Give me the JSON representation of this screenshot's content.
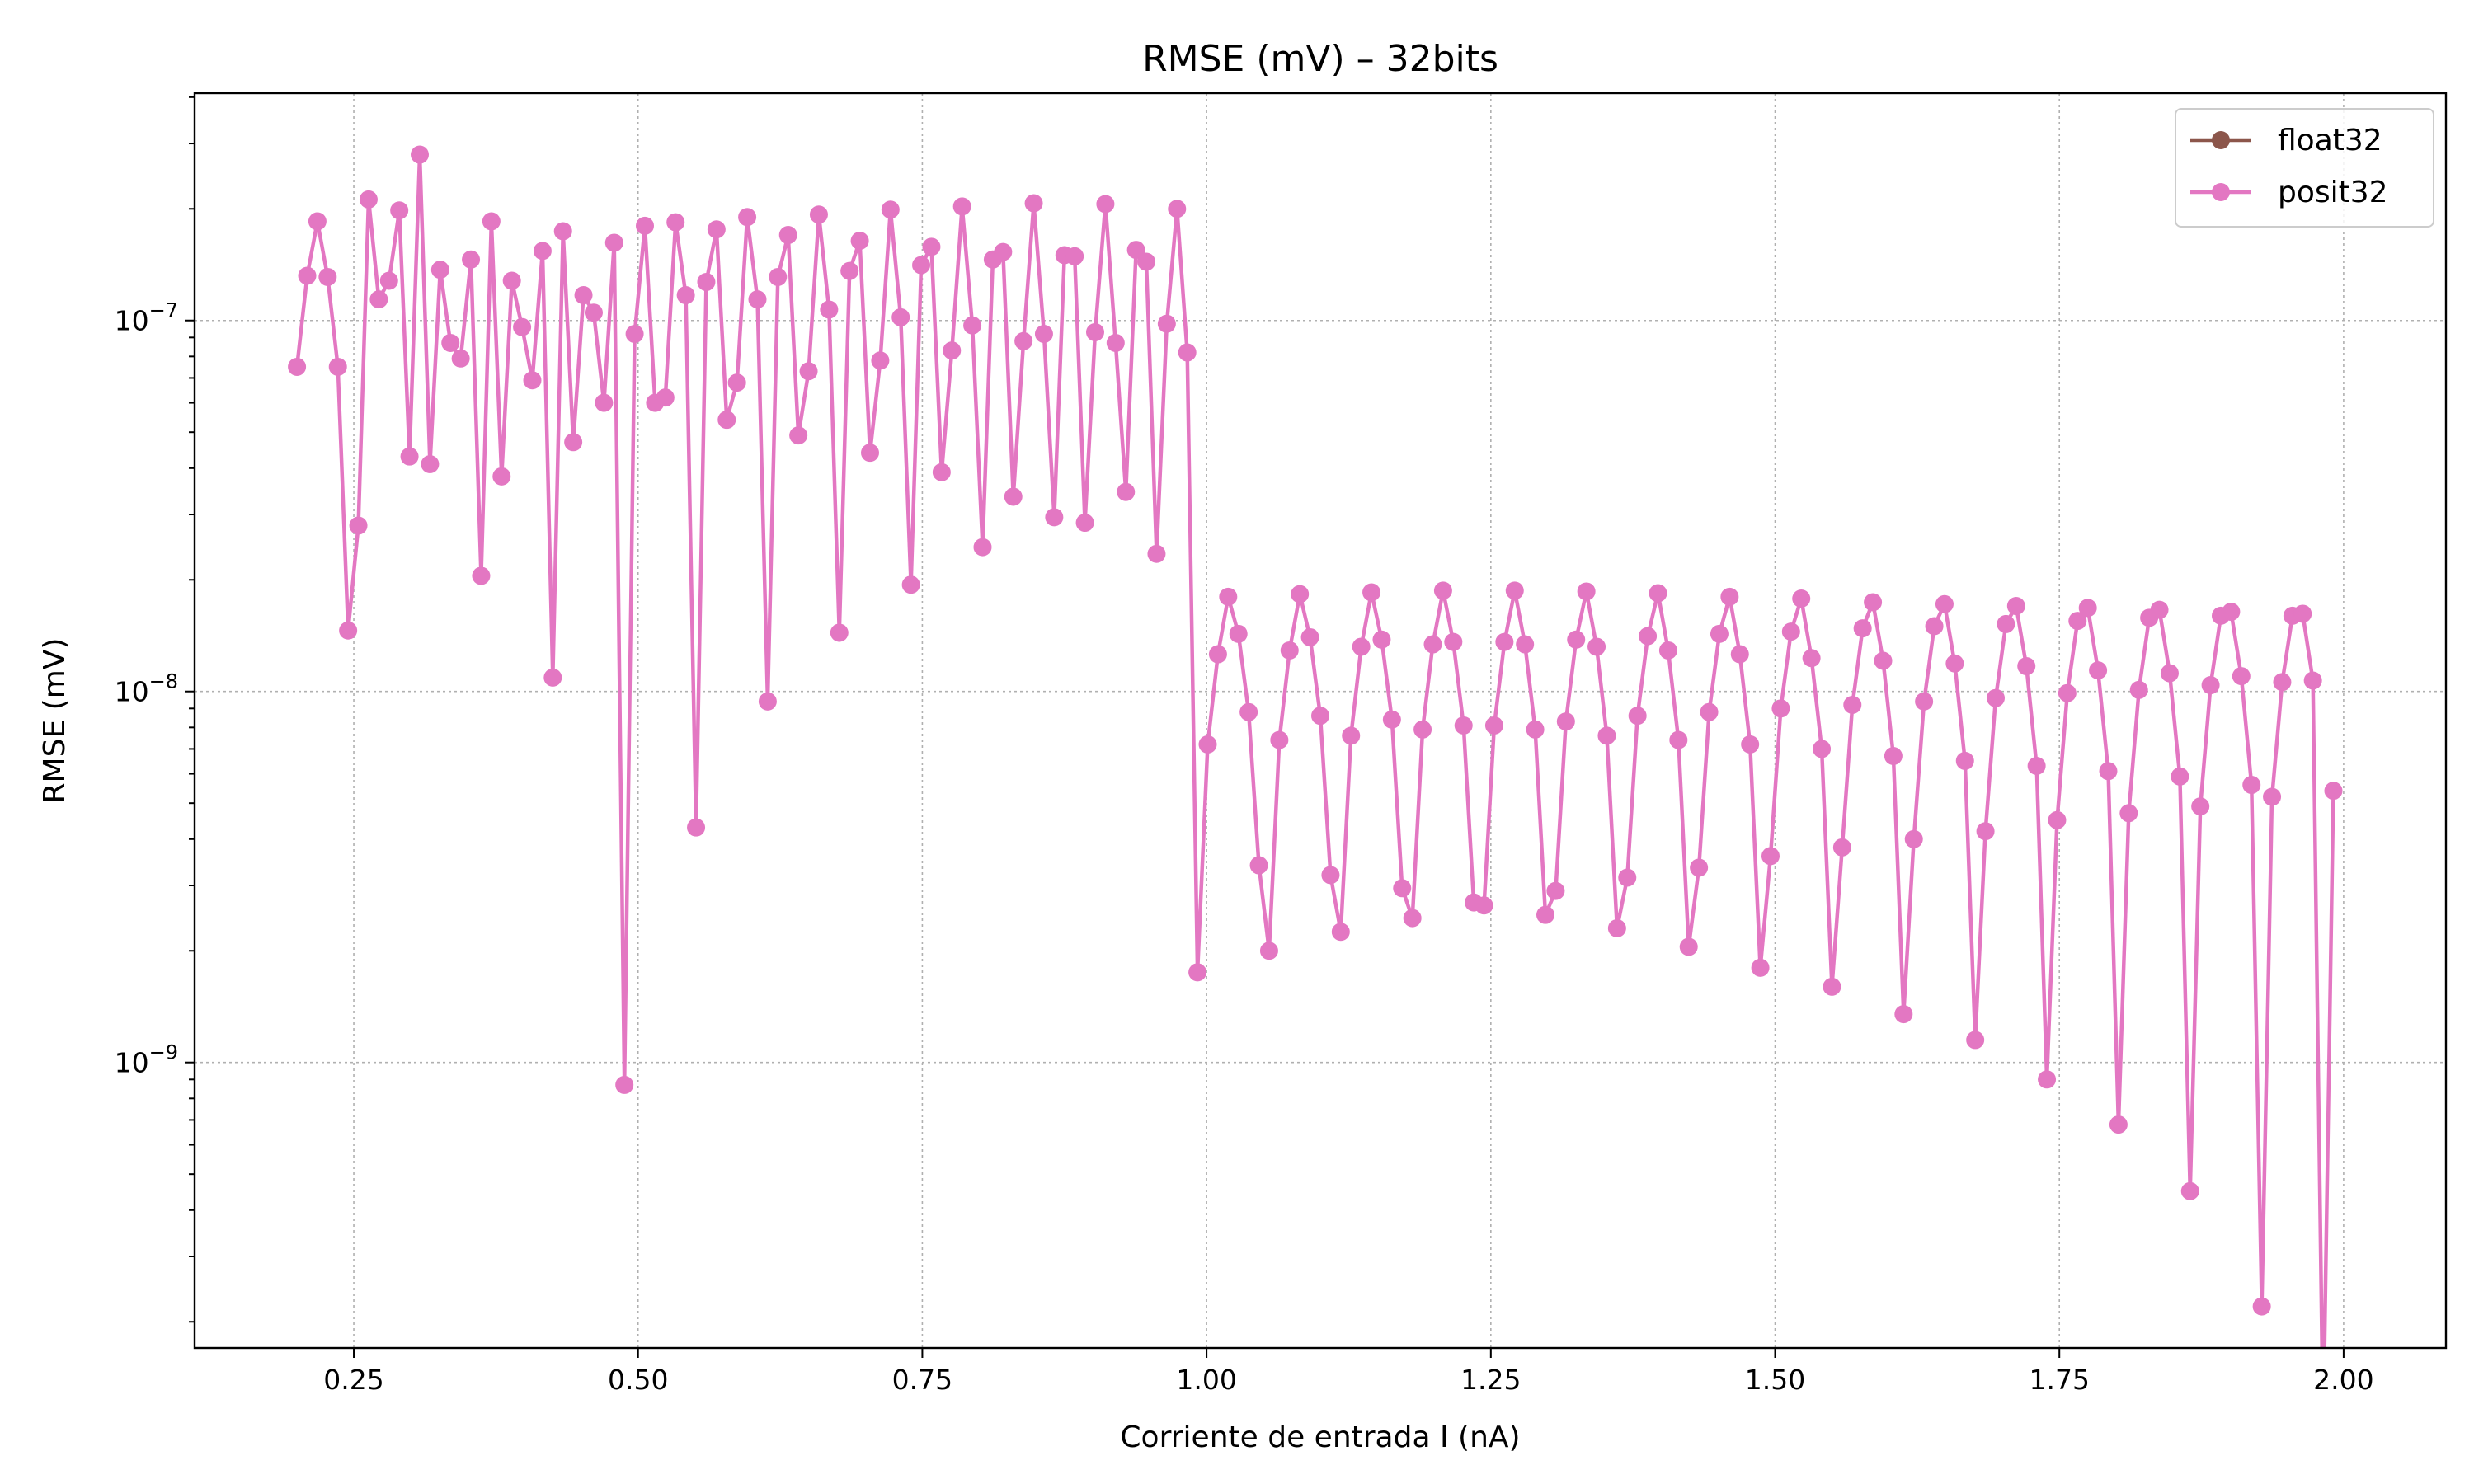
{
  "chart_data": {
    "type": "line",
    "title": "RMSE (mV) – 32bits",
    "xlabel": "Corriente de entrada I (nA)",
    "ylabel": "RMSE (mV)",
    "xlim": [
      0.11,
      2.09
    ],
    "ylim": [
      1.7e-10,
      4.1e-07
    ],
    "yscale": "log",
    "grid": true,
    "legend_position": "top-right",
    "x_ticks": [
      "0.25",
      "0.50",
      "0.75",
      "1.00",
      "1.25",
      "1.50",
      "1.75",
      "2.00"
    ],
    "x_tick_values": [
      0.25,
      0.5,
      0.75,
      1.0,
      1.25,
      1.5,
      1.75,
      2.0
    ],
    "y_ticks": [
      {
        "value": 1e-09,
        "base": "10",
        "exp": "−9"
      },
      {
        "value": 1e-08,
        "base": "10",
        "exp": "−8"
      },
      {
        "value": 1e-07,
        "base": "10",
        "exp": "−7"
      }
    ],
    "x_start": 0.2,
    "x_step": 0.009,
    "series": [
      {
        "name": "float32",
        "color": "#8c564b",
        "values": []
      },
      {
        "name": "posit32",
        "color": "#e377c2",
        "values": [
          7.5e-08,
          1.32e-07,
          1.85e-07,
          1.31e-07,
          7.5e-08,
          1.46e-08,
          2.8e-08,
          2.12e-07,
          1.14e-07,
          1.28e-07,
          1.98e-07,
          4.3e-08,
          2.8e-07,
          4.1e-08,
          1.37e-07,
          8.7e-08,
          7.9e-08,
          1.46e-07,
          2.05e-08,
          1.85e-07,
          3.8e-08,
          1.28e-07,
          9.6e-08,
          6.9e-08,
          1.54e-07,
          1.09e-08,
          1.74e-07,
          4.7e-08,
          1.17e-07,
          1.05e-07,
          6e-08,
          1.62e-07,
          8.7e-10,
          9.2e-08,
          1.8e-07,
          6e-08,
          6.2e-08,
          1.84e-07,
          1.17e-07,
          4.3e-09,
          1.27e-07,
          1.76e-07,
          5.4e-08,
          6.8e-08,
          1.9e-07,
          1.14e-07,
          9.4e-09,
          1.31e-07,
          1.7e-07,
          4.9e-08,
          7.3e-08,
          1.93e-07,
          1.07e-07,
          1.44e-08,
          1.36e-07,
          1.64e-07,
          4.4e-08,
          7.8e-08,
          1.99e-07,
          1.02e-07,
          1.94e-08,
          1.41e-07,
          1.58e-07,
          3.9e-08,
          8.3e-08,
          2.03e-07,
          9.7e-08,
          2.45e-08,
          1.46e-07,
          1.53e-07,
          3.35e-08,
          8.8e-08,
          2.07e-07,
          9.2e-08,
          2.95e-08,
          1.5e-07,
          1.49e-07,
          2.85e-08,
          9.3e-08,
          2.06e-07,
          8.7e-08,
          3.45e-08,
          1.55e-07,
          1.44e-07,
          2.35e-08,
          9.8e-08,
          2e-07,
          8.2e-08,
          1.75e-09,
          7.2e-09,
          1.26e-08,
          1.8e-08,
          1.43e-08,
          8.8e-09,
          3.4e-09,
          2e-09,
          7.4e-09,
          1.29e-08,
          1.83e-08,
          1.4e-08,
          8.6e-09,
          3.2e-09,
          2.25e-09,
          7.6e-09,
          1.32e-08,
          1.85e-08,
          1.38e-08,
          8.4e-09,
          2.95e-09,
          2.45e-09,
          7.9e-09,
          1.34e-08,
          1.87e-08,
          1.36e-08,
          8.1e-09,
          2.7e-09,
          2.65e-09,
          8.1e-09,
          1.36e-08,
          1.87e-08,
          1.34e-08,
          7.9e-09,
          2.5e-09,
          2.9e-09,
          8.3e-09,
          1.38e-08,
          1.86e-08,
          1.32e-08,
          7.6e-09,
          2.3e-09,
          3.15e-09,
          8.6e-09,
          1.41e-08,
          1.84e-08,
          1.29e-08,
          7.4e-09,
          2.05e-09,
          3.35e-09,
          8.8e-09,
          1.43e-08,
          1.8e-08,
          1.26e-08,
          7.2e-09,
          1.8e-09,
          3.6e-09,
          9e-09,
          1.45e-08,
          1.78e-08,
          1.23e-08,
          7e-09,
          1.6e-09,
          3.8e-09,
          9.2e-09,
          1.48e-08,
          1.74e-08,
          1.21e-08,
          6.7e-09,
          1.35e-09,
          4e-09,
          9.4e-09,
          1.5e-08,
          1.72e-08,
          1.19e-08,
          6.5e-09,
          1.15e-09,
          4.2e-09,
          9.6e-09,
          1.52e-08,
          1.7e-08,
          1.17e-08,
          6.3e-09,
          9e-10,
          4.5e-09,
          9.9e-09,
          1.55e-08,
          1.68e-08,
          1.14e-08,
          6.1e-09,
          6.8e-10,
          4.7e-09,
          1.01e-08,
          1.58e-08,
          1.66e-08,
          1.12e-08,
          5.9e-09,
          4.5e-10,
          4.9e-09,
          1.04e-08,
          1.6e-08,
          1.64e-08,
          1.1e-08,
          5.6e-09,
          2.2e-10,
          5.2e-09,
          1.06e-08,
          1.6e-08,
          1.62e-08,
          1.07e-08,
          1e-10,
          5.4e-09
        ]
      }
    ]
  }
}
